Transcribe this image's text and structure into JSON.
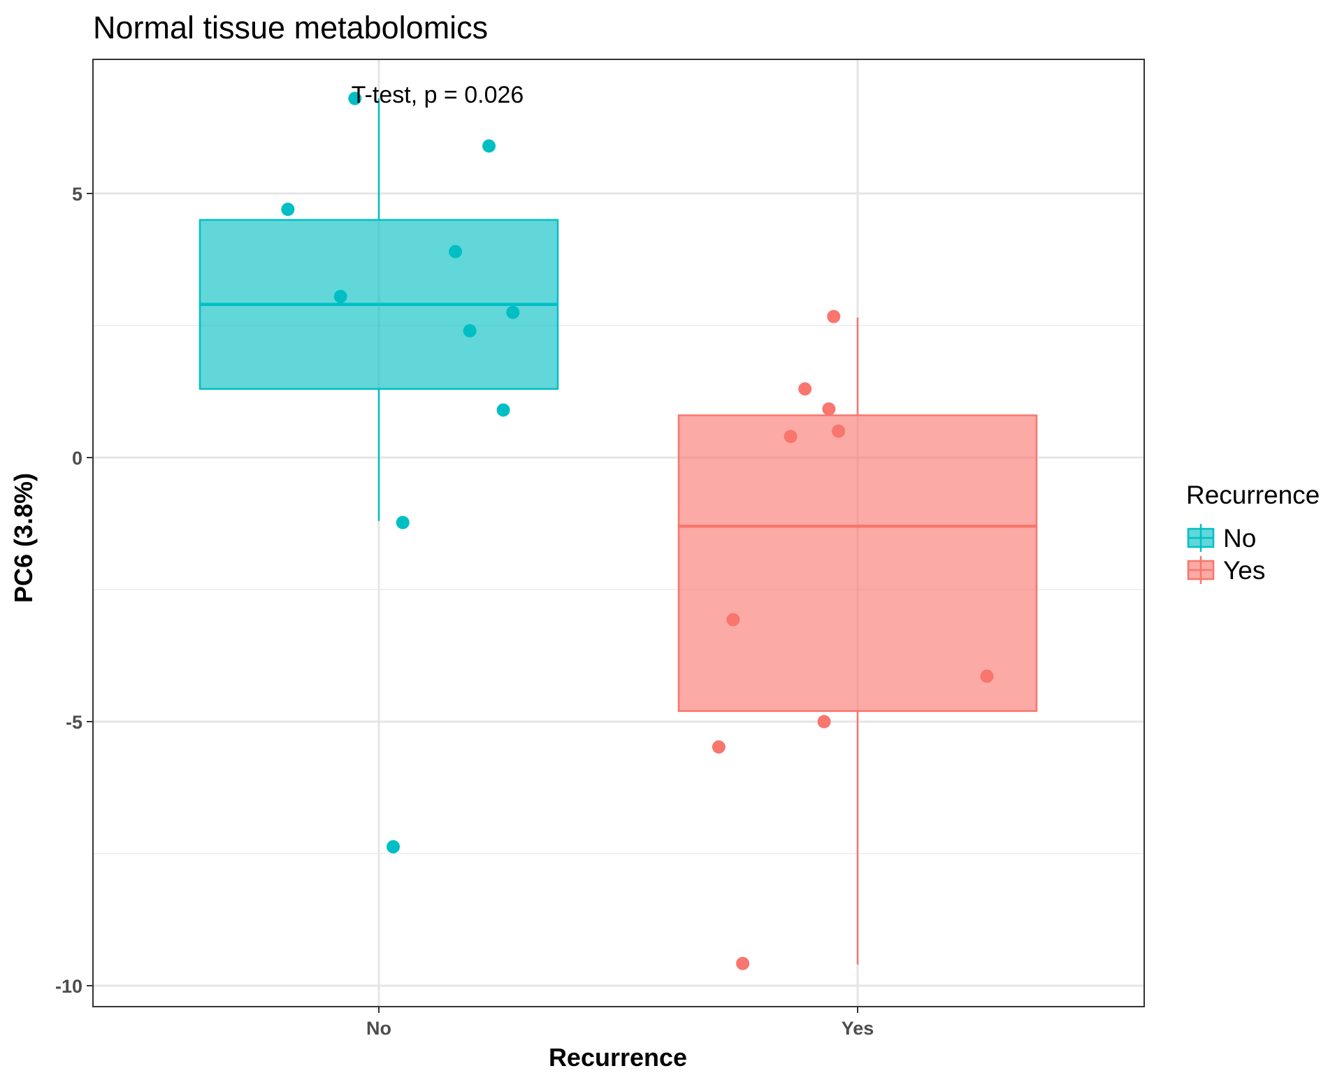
{
  "chart_data": {
    "type": "box",
    "title": "Normal tissue metabolomics",
    "xlabel": "Recurrence",
    "ylabel": "PC6 (3.8%)",
    "categories": [
      "No",
      "Yes"
    ],
    "ylim": [
      -10.4,
      7.5
    ],
    "y_ticks": [
      -10,
      -5,
      0,
      5
    ],
    "y_tick_labels": [
      "-10",
      "-5",
      "0",
      "5"
    ],
    "grid": true,
    "legend": {
      "title": "Recurrence",
      "position": "right",
      "entries": [
        {
          "label": "No",
          "color": "#00BFC4"
        },
        {
          "label": "Yes",
          "color": "#F8766D"
        }
      ]
    },
    "annotation": "T-test, p = 0.026",
    "series": [
      {
        "name": "No",
        "color": "#00BFC4",
        "box": {
          "whisker_low": -1.2,
          "q1": 1.3,
          "median": 2.9,
          "q3": 4.5,
          "whisker_high": 6.8
        },
        "points": [
          {
            "x_offset": -0.19,
            "y": 4.7
          },
          {
            "x_offset": -0.05,
            "y": 6.8
          },
          {
            "x_offset": 0.23,
            "y": 5.9
          },
          {
            "x_offset": 0.16,
            "y": 3.9
          },
          {
            "x_offset": -0.08,
            "y": 3.05
          },
          {
            "x_offset": 0.28,
            "y": 2.75
          },
          {
            "x_offset": 0.19,
            "y": 2.4
          },
          {
            "x_offset": 0.26,
            "y": 0.9
          },
          {
            "x_offset": 0.05,
            "y": -1.23
          },
          {
            "x_offset": 0.03,
            "y": -7.37
          }
        ]
      },
      {
        "name": "Yes",
        "color": "#F8766D",
        "box": {
          "whisker_low": -9.6,
          "q1": -4.8,
          "median": -1.3,
          "q3": 0.8,
          "whisker_high": 2.65
        },
        "points": [
          {
            "x_offset": -0.05,
            "y": 2.67
          },
          {
            "x_offset": -0.11,
            "y": 1.3
          },
          {
            "x_offset": -0.06,
            "y": 0.92
          },
          {
            "x_offset": -0.04,
            "y": 0.5
          },
          {
            "x_offset": -0.14,
            "y": 0.4
          },
          {
            "x_offset": -0.26,
            "y": -3.07
          },
          {
            "x_offset": 0.27,
            "y": -4.14
          },
          {
            "x_offset": -0.07,
            "y": -5.0
          },
          {
            "x_offset": -0.29,
            "y": -5.48
          },
          {
            "x_offset": -0.24,
            "y": -9.58
          }
        ]
      }
    ]
  }
}
